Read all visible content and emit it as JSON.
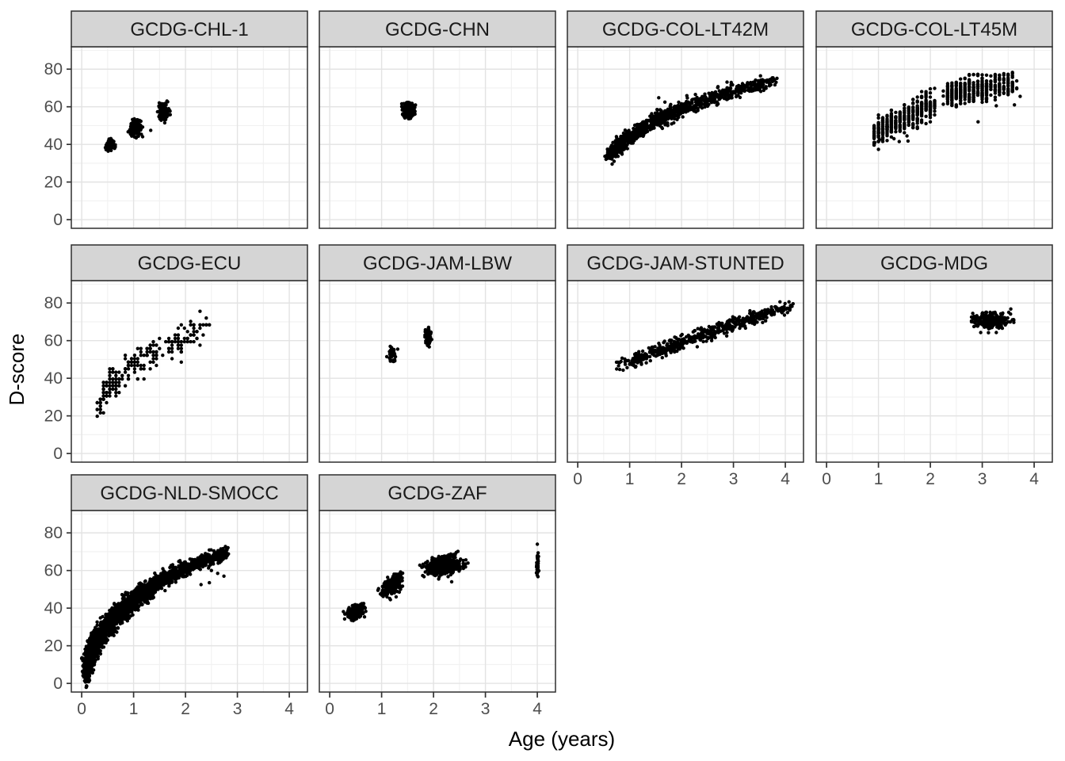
{
  "style": {
    "background": "#FFFFFF",
    "strip_bg": "#D5D5D5",
    "strip_text_color": "#1A1A1A",
    "panel_bg": "#FFFFFF",
    "panel_border": "#2E2E2E",
    "grid_major": "#E3E3E3",
    "grid_minor": "#F1F1F1",
    "tick_mark_color": "#333333",
    "tick_label_color": "#4D4D4D",
    "axis_title_color": "#000000",
    "point_color": "#000000"
  },
  "chart_data": {
    "type": "scatter",
    "title": "",
    "xlabel": "Age (years)",
    "ylabel": "D-score",
    "x_ticks": [
      0,
      1,
      2,
      3,
      4
    ],
    "y_ticks": [
      0,
      20,
      40,
      60,
      80
    ],
    "x_minor_ticks": [
      0.5,
      1.5,
      2.5,
      3.5
    ],
    "y_minor_ticks": [
      10,
      30,
      50,
      70,
      90
    ],
    "xlim": [
      -0.2,
      4.35
    ],
    "ylim": [
      -4.6,
      91.9
    ],
    "grid": "on",
    "legend": "none",
    "facet_layout": {
      "ncol": 4,
      "nrow": 3
    },
    "facets": [
      {
        "label": "GCDG-CHL-1",
        "row": 0,
        "col": 0,
        "left_axis": true,
        "bottom_axis": false,
        "clusters": [
          {
            "type": "blob",
            "cx": 0.54,
            "cy": 40,
            "sx": 0.045,
            "sy": 1.5,
            "n": 60
          },
          {
            "type": "blob",
            "cx": 1.03,
            "cy": 49,
            "sx": 0.06,
            "sy": 2.1,
            "n": 135
          },
          {
            "type": "blob",
            "cx": 1.58,
            "cy": 57.5,
            "sx": 0.055,
            "sy": 2.3,
            "n": 115
          },
          {
            "type": "points",
            "pts": [
              [
                1.05,
                43.5
              ],
              [
                1.33,
                47.5
              ],
              [
                1.6,
                51.5
              ],
              [
                0.47,
                37.2
              ]
            ]
          }
        ]
      },
      {
        "label": "GCDG-CHN",
        "row": 0,
        "col": 1,
        "left_axis": false,
        "bottom_axis": false,
        "clusters": [
          {
            "type": "blob",
            "cx": 1.52,
            "cy": 58,
            "sx": 0.055,
            "sy": 1.8,
            "n": 310
          }
        ]
      },
      {
        "label": "GCDG-COL-LT42M",
        "row": 0,
        "col": 2,
        "left_axis": false,
        "bottom_axis": false,
        "clusters": [
          {
            "type": "band",
            "path": [
              [
                0.62,
                34
              ],
              [
                0.75,
                38
              ],
              [
                0.9,
                42
              ],
              [
                1.1,
                46
              ],
              [
                1.35,
                50
              ],
              [
                1.65,
                54.5
              ],
              [
                2.0,
                59
              ],
              [
                2.4,
                63
              ],
              [
                2.9,
                67.5
              ],
              [
                3.4,
                71
              ],
              [
                3.78,
                73.5
              ]
            ],
            "sd": 1.9,
            "sdx": 0.045,
            "n": 980
          },
          {
            "type": "points",
            "pts": [
              [
                1.56,
                64.8
              ],
              [
                1.68,
                62.5
              ],
              [
                1.63,
                48.5
              ],
              [
                1.85,
                51.5
              ],
              [
                0.66,
                33.2
              ]
            ]
          }
        ]
      },
      {
        "label": "GCDG-COL-LT45M",
        "row": 0,
        "col": 3,
        "left_axis": false,
        "bottom_axis": false,
        "clusters": [
          {
            "type": "band",
            "path": [
              [
                0.9,
                45.5
              ],
              [
                1.2,
                50
              ],
              [
                1.5,
                54
              ],
              [
                1.8,
                58
              ],
              [
                2.07,
                61.5
              ]
            ],
            "sd": 3.5,
            "sdx": 0.02,
            "xstep": 0.0833,
            "n": 430
          },
          {
            "type": "band",
            "path": [
              [
                2.3,
                66
              ],
              [
                2.7,
                68.5
              ],
              [
                3.1,
                70
              ],
              [
                3.62,
                71.5
              ]
            ],
            "sd": 2.8,
            "sdx": 0.02,
            "xstep": 0.0833,
            "n": 440
          },
          {
            "type": "band",
            "path": [
              [
                2.75,
                77
              ],
              [
                3.5,
                77
              ]
            ],
            "sd": 0.25,
            "sdx": 0.02,
            "xstep": 0.0833,
            "n": 20
          },
          {
            "type": "points",
            "pts": [
              [
                0.93,
                41
              ],
              [
                1.02,
                42.5
              ],
              [
                1.3,
                43
              ],
              [
                1.4,
                41.5
              ],
              [
                1.55,
                44.5
              ],
              [
                1.57,
                41.8
              ],
              [
                2.92,
                52
              ],
              [
                3.27,
                60.5
              ],
              [
                3.62,
                61
              ],
              [
                3.73,
                65.5
              ]
            ]
          }
        ]
      },
      {
        "label": "GCDG-ECU",
        "row": 1,
        "col": 0,
        "left_axis": true,
        "bottom_axis": false,
        "clusters": [
          {
            "type": "band",
            "path": [
              [
                0.3,
                25
              ],
              [
                0.45,
                32
              ],
              [
                0.62,
                38
              ],
              [
                0.8,
                43
              ],
              [
                1.0,
                47
              ],
              [
                1.25,
                51
              ],
              [
                1.5,
                55
              ],
              [
                1.75,
                58
              ],
              [
                2.0,
                62
              ],
              [
                2.2,
                66
              ],
              [
                2.45,
                69
              ]
            ],
            "sd": 4.3,
            "sdx": 0.035,
            "xstep": 0.06,
            "ystep": 1.8,
            "n": 235
          }
        ]
      },
      {
        "label": "GCDG-JAM-LBW",
        "row": 1,
        "col": 1,
        "left_axis": false,
        "bottom_axis": false,
        "clusters": [
          {
            "type": "blob",
            "cx": 1.2,
            "cy": 53,
            "sx": 0.032,
            "sy": 1.9,
            "n": 58
          },
          {
            "type": "blob",
            "cx": 1.9,
            "cy": 62.5,
            "sx": 0.027,
            "sy": 2.7,
            "n": 72
          },
          {
            "type": "points",
            "pts": [
              [
                1.1,
                51.5
              ],
              [
                1.31,
                55.5
              ]
            ]
          }
        ]
      },
      {
        "label": "GCDG-JAM-STUNTED",
        "row": 1,
        "col": 2,
        "left_axis": false,
        "bottom_axis": true,
        "clusters": [
          {
            "type": "band",
            "path": [
              [
                0.75,
                47
              ],
              [
                1.0,
                48.5
              ],
              [
                1.3,
                51.5
              ],
              [
                1.7,
                55.5
              ],
              [
                2.1,
                60
              ],
              [
                2.5,
                64
              ],
              [
                2.9,
                68
              ],
              [
                3.3,
                71.5
              ],
              [
                3.7,
                75
              ],
              [
                4.0,
                77
              ],
              [
                4.15,
                77.5
              ]
            ],
            "sd": 1.7,
            "sdx": 0.035,
            "n": 540
          },
          {
            "type": "points",
            "pts": [
              [
                2.42,
                59.5
              ],
              [
                2.58,
                60
              ],
              [
                2.87,
                62.5
              ],
              [
                3.62,
                70.5
              ],
              [
                1.32,
                48.2
              ]
            ]
          }
        ]
      },
      {
        "label": "GCDG-MDG",
        "row": 1,
        "col": 3,
        "left_axis": false,
        "bottom_axis": true,
        "clusters": [
          {
            "type": "blob",
            "cx": 3.2,
            "cy": 70.5,
            "sx": 0.17,
            "sy": 1.9,
            "n": 270
          },
          {
            "type": "points",
            "pts": [
              [
                2.97,
                64.3
              ],
              [
                3.12,
                64.2
              ],
              [
                3.27,
                64.3
              ],
              [
                3.55,
                76.8
              ],
              [
                2.84,
                67.5
              ]
            ]
          }
        ]
      },
      {
        "label": "GCDG-NLD-SMOCC",
        "row": 2,
        "col": 0,
        "left_axis": true,
        "bottom_axis": true,
        "clusters": [
          {
            "type": "band",
            "path": [
              [
                0.07,
                6
              ],
              [
                0.12,
                11
              ],
              [
                0.2,
                17
              ],
              [
                0.3,
                23
              ],
              [
                0.45,
                29
              ],
              [
                0.6,
                34
              ],
              [
                0.8,
                39
              ],
              [
                1.0,
                44
              ],
              [
                1.25,
                49
              ],
              [
                1.5,
                54
              ],
              [
                1.8,
                58.5
              ],
              [
                2.1,
                62
              ],
              [
                2.4,
                65.5
              ],
              [
                2.8,
                69.5
              ]
            ],
            "sd": 4.6,
            "sd2": 1.6,
            "sdx": 0.03,
            "n": 2150
          },
          {
            "type": "points",
            "pts": [
              [
                2.5,
                60
              ],
              [
                2.62,
                58.5
              ],
              [
                2.74,
                57
              ],
              [
                2.3,
                52.5
              ],
              [
                2.46,
                53.5
              ],
              [
                0.1,
                1.8
              ],
              [
                0.14,
                2.6
              ]
            ]
          }
        ]
      },
      {
        "label": "GCDG-ZAF",
        "row": 2,
        "col": 1,
        "left_axis": false,
        "bottom_axis": true,
        "clusters": [
          {
            "type": "band",
            "path": [
              [
                0.38,
                36.5
              ],
              [
                0.62,
                40
              ]
            ],
            "sd": 1.7,
            "sdx": 0.05,
            "n": 215
          },
          {
            "type": "band",
            "path": [
              [
                1.05,
                49
              ],
              [
                1.32,
                53.5
              ]
            ],
            "sd": 2.0,
            "sdx": 0.05,
            "n": 235
          },
          {
            "type": "band",
            "path": [
              [
                1.28,
                57.5
              ],
              [
                1.4,
                58.2
              ]
            ],
            "sd": 0.4,
            "sdx": 0.02,
            "n": 14
          },
          {
            "type": "band",
            "path": [
              [
                1.95,
                61
              ],
              [
                2.45,
                63.5
              ]
            ],
            "sd": 2.0,
            "sdx": 0.1,
            "n": 430
          },
          {
            "type": "band",
            "path": [
              [
                1.98,
                64.8
              ],
              [
                2.45,
                69
              ]
            ],
            "sd": 0.5,
            "sdx": 0.025,
            "n": 60
          },
          {
            "type": "band",
            "path": [
              [
                4.0,
                59
              ],
              [
                4.01,
                68
              ]
            ],
            "sd": 1.4,
            "sdx": 0.012,
            "n": 32
          },
          {
            "type": "points",
            "pts": [
              [
                4.0,
                74
              ],
              [
                2.1,
                55.5
              ],
              [
                2.35,
                54
              ],
              [
                1.17,
                44.5
              ],
              [
                1.28,
                46
              ],
              [
                1.03,
                46.2
              ]
            ]
          }
        ]
      }
    ]
  }
}
